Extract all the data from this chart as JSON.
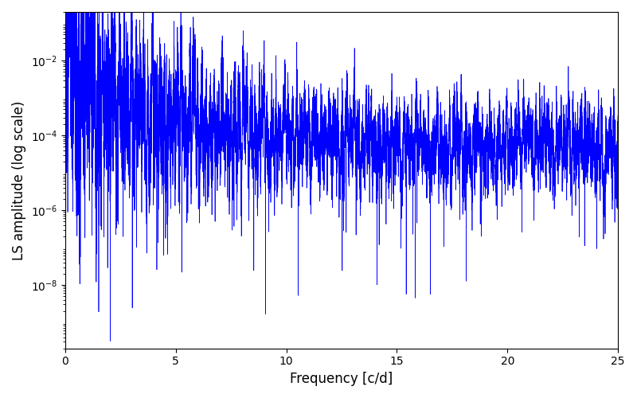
{
  "xlabel": "Frequency [c/d]",
  "ylabel": "LS amplitude (log scale)",
  "xlim": [
    0,
    25
  ],
  "ylim": [
    2e-10,
    0.2
  ],
  "line_color": "#0000ff",
  "line_width": 0.5,
  "background_color": "#ffffff",
  "yscale": "log",
  "yticks": [
    1e-08,
    1e-06,
    0.0001,
    0.01
  ],
  "xticks": [
    0,
    5,
    10,
    15,
    20,
    25
  ],
  "n_points": 12000,
  "freq_max": 25.0,
  "seed": 137
}
